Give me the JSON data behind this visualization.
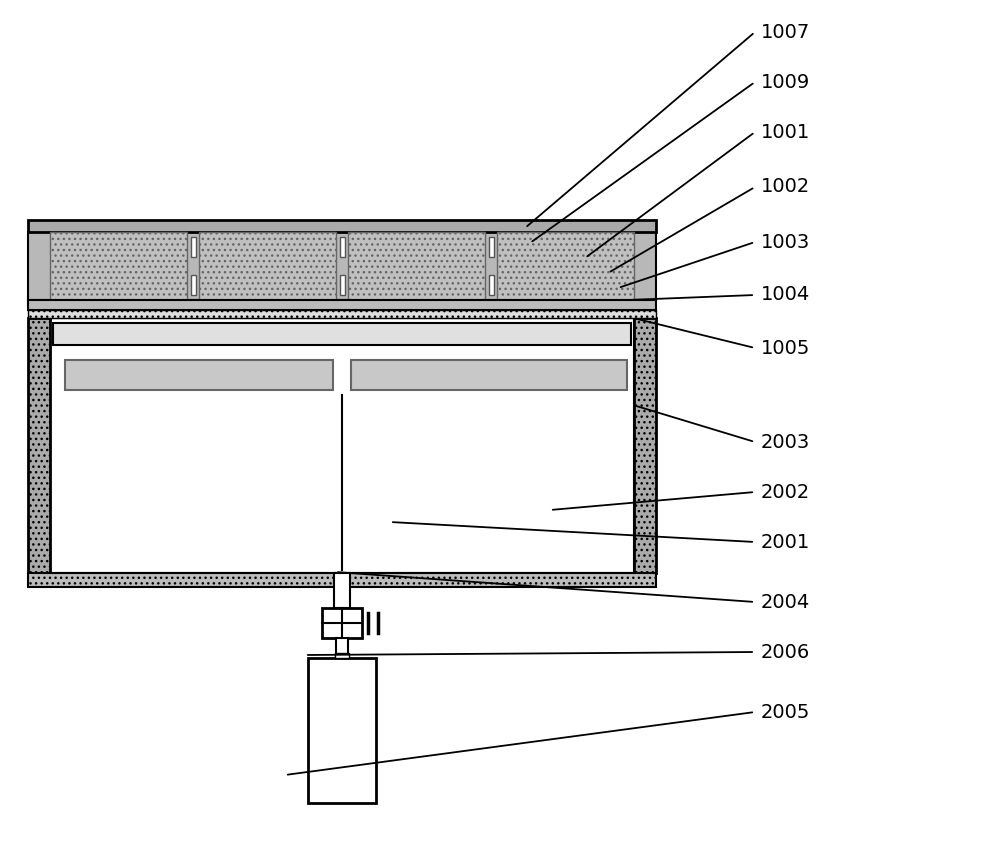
{
  "bg_color": "#ffffff",
  "fig_width": 10.0,
  "fig_height": 8.58,
  "dpi": 100,
  "arrows": [
    [
      "1007",
      [
        525,
        228
      ],
      [
        755,
        32
      ]
    ],
    [
      "1009",
      [
        530,
        243
      ],
      [
        755,
        82
      ]
    ],
    [
      "1001",
      [
        585,
        258
      ],
      [
        755,
        132
      ]
    ],
    [
      "1002",
      [
        608,
        273
      ],
      [
        755,
        187
      ]
    ],
    [
      "1003",
      [
        618,
        288
      ],
      [
        755,
        242
      ]
    ],
    [
      "1004",
      [
        628,
        300
      ],
      [
        755,
        295
      ]
    ],
    [
      "1005",
      [
        633,
        318
      ],
      [
        755,
        348
      ]
    ],
    [
      "2003",
      [
        633,
        405
      ],
      [
        755,
        442
      ]
    ],
    [
      "2002",
      [
        550,
        510
      ],
      [
        755,
        492
      ]
    ],
    [
      "2001",
      [
        390,
        522
      ],
      [
        755,
        542
      ]
    ],
    [
      "2004",
      [
        335,
        572
      ],
      [
        755,
        602
      ]
    ],
    [
      "2006",
      [
        305,
        655
      ],
      [
        755,
        652
      ]
    ],
    [
      "2005",
      [
        285,
        775
      ],
      [
        755,
        712
      ]
    ]
  ]
}
